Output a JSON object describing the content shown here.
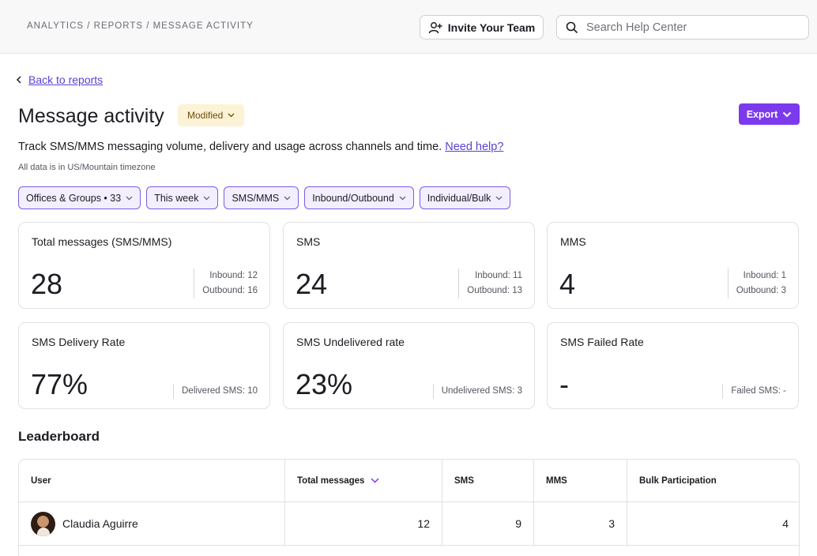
{
  "header": {
    "breadcrumb": "ANALYTICS / REPORTS / MESSAGE ACTIVITY",
    "invite_label": "Invite Your Team",
    "search_placeholder": "Search Help Center"
  },
  "page": {
    "back_label": "Back to reports",
    "title": "Message activity",
    "badge": "Modified",
    "export_label": "Export",
    "description": "Track SMS/MMS messaging volume, delivery and usage across channels and time.",
    "help_link": "Need help?",
    "timezone": "All data is in US/Mountain timezone"
  },
  "filters": [
    {
      "label": "Offices & Groups • 33"
    },
    {
      "label": "This week"
    },
    {
      "label": "SMS/MMS"
    },
    {
      "label": "Inbound/Outbound"
    },
    {
      "label": "Individual/Bulk"
    }
  ],
  "stats": {
    "total": {
      "label": "Total messages (SMS/MMS)",
      "value": "28",
      "line1": "Inbound: 12",
      "line2": "Outbound: 16"
    },
    "sms": {
      "label": "SMS",
      "value": "24",
      "line1": "Inbound: 11",
      "line2": "Outbound: 13"
    },
    "mms": {
      "label": "MMS",
      "value": "4",
      "line1": "Inbound: 1",
      "line2": "Outbound: 3"
    },
    "delivery": {
      "label": "SMS Delivery Rate",
      "value": "77%",
      "line1": "Delivered SMS: 10"
    },
    "undelivered": {
      "label": "SMS Undelivered rate",
      "value": "23%",
      "line1": "Undelivered SMS: 3"
    },
    "failed": {
      "label": "SMS Failed Rate",
      "value": "-",
      "line1": "Failed SMS: -"
    }
  },
  "leaderboard": {
    "title": "Leaderboard",
    "columns": [
      "User",
      "Total messages",
      "SMS",
      "MMS",
      "Bulk Participation"
    ],
    "rows": [
      {
        "user": "Claudia Aguirre",
        "total": "12",
        "sms": "9",
        "mms": "3",
        "bulk": "4"
      }
    ]
  },
  "colors": {
    "accent": "#7c3aed",
    "link": "#5b3fd4",
    "badge_bg": "#fcf2d5"
  }
}
